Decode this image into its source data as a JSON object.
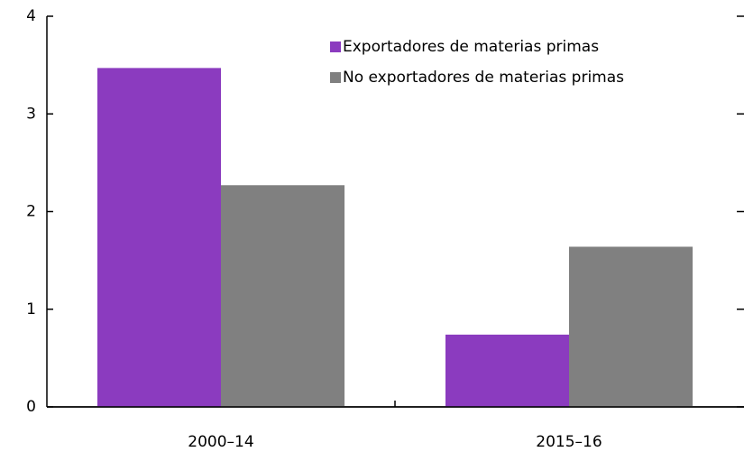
{
  "chart_data": {
    "type": "bar",
    "categories": [
      "2000–14",
      "2015–16"
    ],
    "series": [
      {
        "name": "Exportadores de materias primas",
        "color": "#8b3bbf",
        "values": [
          3.47,
          0.74
        ]
      },
      {
        "name": "No exportadores de materias primas",
        "color": "#808080",
        "values": [
          2.27,
          1.64
        ]
      }
    ],
    "ylim": [
      0,
      4
    ],
    "yticks": [
      0,
      1,
      2,
      3,
      4
    ],
    "legend": "upper right"
  }
}
